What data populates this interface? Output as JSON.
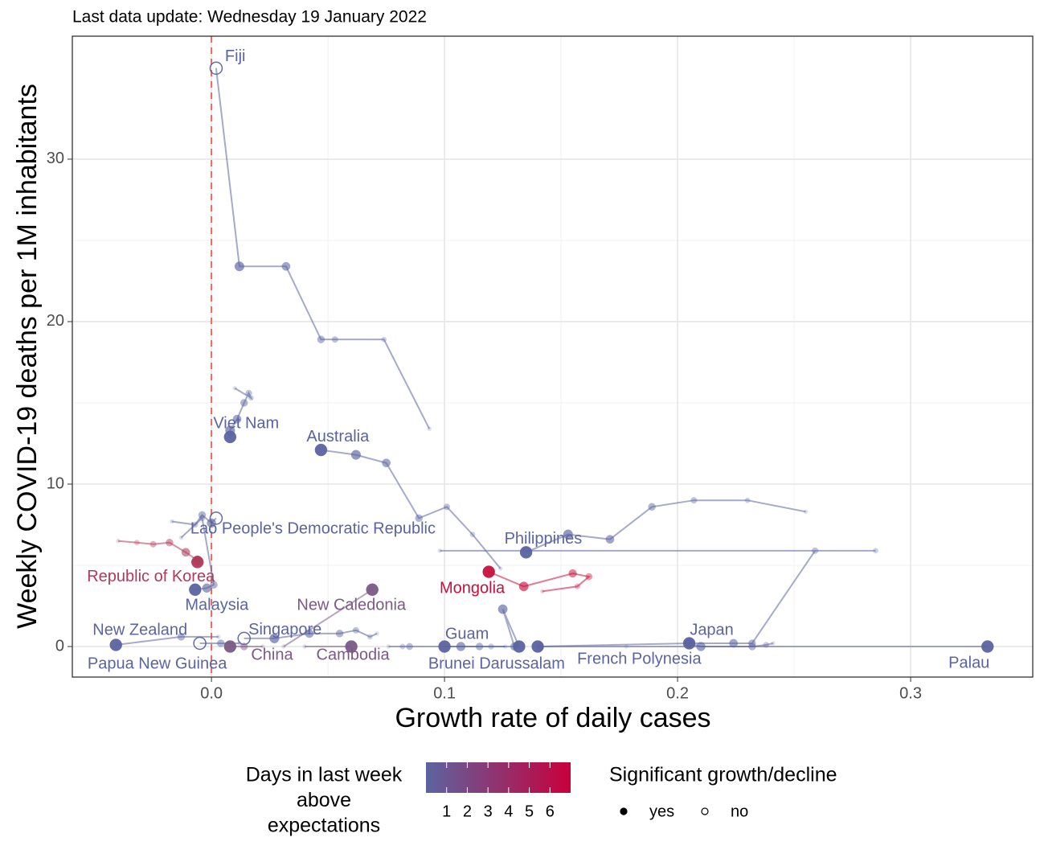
{
  "chart_data": {
    "type": "scatter",
    "subtitle": "Last data update: Wednesday 19 January 2022",
    "xlabel": "Growth rate of daily cases",
    "ylabel": "Weekly COVID-19 deaths per 1M inhabitants",
    "xlim": [
      -0.0597,
      0.3524
    ],
    "ylim": [
      -1.88,
      37.57
    ],
    "xticks": [
      {
        "value": 0,
        "label": "0.0"
      },
      0.1,
      0.2,
      0.3
    ],
    "yticks": [
      0,
      10,
      20,
      30
    ],
    "grid": true,
    "vline": 0,
    "series": [
      {
        "name": "Fiji",
        "color": "#5b64a0",
        "significant": false,
        "x": [
          0.0935,
          0.074,
          0.053,
          0.047,
          0.032,
          0.012,
          0.002
        ],
        "values": [
          13.4,
          18.9,
          18.9,
          18.9,
          23.4,
          23.4,
          35.6
        ]
      },
      {
        "name": "Viet Nam",
        "color": "#5b64a0",
        "significant": true,
        "x": [
          0.01,
          0.017,
          0.016,
          0.014,
          0.011,
          0.008,
          0.008
        ],
        "values": [
          15.9,
          15.3,
          15.6,
          15.0,
          14.0,
          13.3,
          12.9
        ]
      },
      {
        "name": "Australia",
        "color": "#5b64a0",
        "significant": true,
        "x": [
          0.124,
          0.112,
          0.101,
          0.089,
          0.075,
          0.062,
          0.047
        ],
        "values": [
          4.8,
          6.9,
          8.6,
          7.9,
          11.3,
          11.8,
          12.1
        ]
      },
      {
        "name": "Lao People's Democratic Republic",
        "color": "#5b64a0",
        "significant": false,
        "x": [
          -0.017,
          -0.007,
          -0.004,
          0.0,
          0.002
        ],
        "values": [
          7.7,
          7.5,
          8.1,
          7.6,
          7.9
        ]
      },
      {
        "name": "Philippines",
        "color": "#5b64a0",
        "significant": true,
        "x": [
          0.255,
          0.23,
          0.207,
          0.189,
          0.171,
          0.153,
          0.135
        ],
        "values": [
          8.3,
          9.0,
          9.0,
          8.6,
          6.6,
          6.9,
          5.8
        ]
      },
      {
        "name": "Republic of Korea",
        "color": "#b03a5b",
        "significant": true,
        "x": [
          -0.04,
          -0.032,
          -0.025,
          -0.018,
          -0.011,
          -0.006,
          -0.006
        ],
        "values": [
          6.5,
          6.4,
          6.3,
          6.4,
          5.8,
          5.3,
          5.2
        ]
      },
      {
        "name": "Malaysia",
        "color": "#5b64a0",
        "significant": true,
        "x": [
          -0.013,
          -0.004,
          0.001,
          -0.002,
          -0.007
        ],
        "values": [
          6.7,
          7.9,
          3.8,
          3.6,
          3.5
        ]
      },
      {
        "name": "New Caledonia",
        "color": "#7b5a86",
        "significant": true,
        "x": [
          0.031,
          0.069
        ],
        "values": [
          0.0,
          3.5
        ]
      },
      {
        "name": "Mongolia",
        "color": "#c8103c",
        "significant": true,
        "x": [
          0.142,
          0.157,
          0.162,
          0.155,
          0.134,
          0.119
        ],
        "values": [
          3.4,
          3.7,
          4.3,
          4.5,
          3.7,
          4.6
        ]
      },
      {
        "name": "New Zealand",
        "color": "#5b64a0",
        "significant": true,
        "x": [
          0.003,
          -0.013,
          -0.041
        ],
        "values": [
          0.6,
          0.6,
          0.1
        ]
      },
      {
        "name": "Papua New Guinea",
        "color": "#5b64a0",
        "significant": false,
        "x": [
          0.012,
          0.004,
          -0.005
        ],
        "values": [
          0.2,
          0.2,
          0.2
        ]
      },
      {
        "name": "Singapore",
        "color": "#5b64a0",
        "significant": false,
        "x": [
          0.071,
          0.068,
          0.062,
          0.055,
          0.042,
          0.027,
          0.014
        ],
        "values": [
          0.8,
          0.6,
          1.0,
          0.8,
          0.8,
          0.5,
          0.5
        ]
      },
      {
        "name": "China",
        "color": "#7b5a86",
        "significant": true,
        "x": [
          0.022,
          0.014,
          0.008
        ],
        "values": [
          0.0,
          0.0,
          0.0
        ]
      },
      {
        "name": "Cambodia",
        "color": "#7b5a86",
        "significant": true,
        "x": [
          0.04,
          0.06
        ],
        "values": [
          0.0,
          0.0
        ]
      },
      {
        "name": "Guam",
        "color": "#5b64a0",
        "significant": true,
        "x": [
          0.126,
          0.12,
          0.115,
          0.107,
          0.1
        ],
        "values": [
          0.0,
          0.0,
          0.0,
          0.0,
          0.0
        ]
      },
      {
        "name": "Brunei Darussalam",
        "color": "#5b64a0",
        "significant": true,
        "x": [
          0.076,
          0.082,
          0.085,
          0.13,
          0.125,
          0.132
        ],
        "values": [
          0.0,
          0.0,
          0.0,
          0.0,
          2.3,
          0.0
        ]
      },
      {
        "name": "French Polynesia",
        "color": "#5b64a0",
        "significant": true,
        "x": [
          0.098,
          0.285,
          0.259,
          0.232,
          0.224,
          0.205,
          0.14
        ],
        "values": [
          5.9,
          5.9,
          5.9,
          0.2,
          0.2,
          0.2,
          0.0
        ]
      },
      {
        "name": "Japan",
        "color": "#5b64a0",
        "significant": true,
        "x": [
          0.241,
          0.238,
          0.232,
          0.21,
          0.205
        ],
        "values": [
          0.2,
          0.1,
          0.0,
          0.0,
          0.2
        ]
      },
      {
        "name": "Palau",
        "color": "#5b64a0",
        "significant": true,
        "x": [
          0.178,
          0.141,
          0.333
        ],
        "values": [
          0.0,
          0.0,
          0.0
        ]
      }
    ],
    "legend": {
      "color_title": [
        "Days in last week",
        "above",
        "expectations"
      ],
      "colorbar": {
        "colors": [
          "#5b64a0",
          "#c8003c"
        ],
        "lim": [
          0,
          7
        ],
        "ticks": [
          1,
          2,
          3,
          4,
          5,
          6
        ]
      },
      "shape_title": "Significant growth/decline",
      "shapes": [
        "yes",
        "no"
      ]
    }
  }
}
